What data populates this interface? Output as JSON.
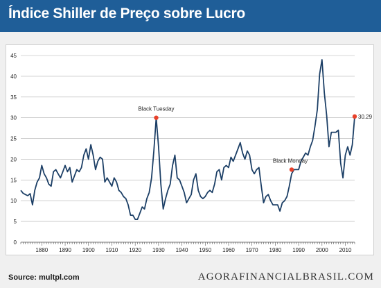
{
  "header": {
    "title": "Índice Shiller de Preço sobre Lucro"
  },
  "colors": {
    "header_bg": "#1f5e98",
    "line": "#1c3f66",
    "marker": "#e8412a",
    "grid": "#b0b0b0",
    "plot_bg": "#ffffff",
    "page_bg": "#f0f0f0"
  },
  "footer": {
    "source": "Source: multpl.com",
    "brand": "AGORAFINANCIALBRASIL.COM"
  },
  "chart_data": {
    "type": "line",
    "title": "Índice Shiller de Preço sobre Lucro",
    "xlabel": "",
    "ylabel": "",
    "xlim": [
      1871,
      2014
    ],
    "ylim": [
      0,
      45
    ],
    "x_ticks": [
      1880,
      1890,
      1900,
      1910,
      1920,
      1930,
      1940,
      1950,
      1960,
      1970,
      1980,
      1990,
      2000,
      2010
    ],
    "x_tick_labels": [
      "1880",
      "1890",
      "1900",
      "1910",
      "1920",
      "1930",
      "1940",
      "1950",
      "1960",
      "1970",
      "1980",
      "1990",
      "2000",
      "2010"
    ],
    "y_ticks": [
      0,
      5,
      10,
      15,
      20,
      25,
      30,
      35,
      40,
      45
    ],
    "y_tick_labels": [
      "0",
      "5",
      "10",
      "15",
      "20",
      "25",
      "30",
      "35",
      "40",
      "45"
    ],
    "grid": "horizontal",
    "series": [
      {
        "x": [
          1871,
          1872,
          1873,
          1874,
          1875,
          1876,
          1877,
          1878,
          1879,
          1880,
          1881,
          1882,
          1883,
          1884,
          1885,
          1886,
          1887,
          1888,
          1889,
          1890,
          1891,
          1892,
          1893,
          1894,
          1895,
          1896,
          1897,
          1898,
          1899,
          1900,
          1901,
          1902,
          1903,
          1904,
          1905,
          1906,
          1907,
          1908,
          1909,
          1910,
          1911,
          1912,
          1913,
          1914,
          1915,
          1916,
          1917,
          1918,
          1919,
          1920,
          1921,
          1922,
          1923,
          1924,
          1925,
          1926,
          1927,
          1928,
          1929,
          1930,
          1931,
          1932,
          1933,
          1934,
          1935,
          1936,
          1937,
          1938,
          1939,
          1940,
          1941,
          1942,
          1943,
          1944,
          1945,
          1946,
          1947,
          1948,
          1949,
          1950,
          1951,
          1952,
          1953,
          1954,
          1955,
          1956,
          1957,
          1958,
          1959,
          1960,
          1961,
          1962,
          1963,
          1964,
          1965,
          1966,
          1967,
          1968,
          1969,
          1970,
          1971,
          1972,
          1973,
          1974,
          1975,
          1976,
          1977,
          1978,
          1979,
          1980,
          1981,
          1982,
          1983,
          1984,
          1985,
          1986,
          1987,
          1988,
          1989,
          1990,
          1991,
          1992,
          1993,
          1994,
          1995,
          1996,
          1997,
          1998,
          1999,
          2000,
          2001,
          2002,
          2003,
          2004,
          2005,
          2006,
          2007,
          2008,
          2009,
          2010,
          2011,
          2012,
          2013,
          2014
        ],
        "values": [
          12.5,
          11.8,
          11.5,
          11.2,
          11.7,
          9.0,
          12.5,
          14.5,
          15.5,
          18.5,
          16.5,
          15.5,
          14.0,
          13.5,
          17.0,
          17.5,
          16.5,
          15.5,
          17.0,
          18.5,
          17.0,
          18.0,
          14.5,
          16.0,
          17.5,
          17.0,
          18.0,
          21.0,
          22.5,
          20.0,
          23.5,
          21.0,
          17.5,
          19.5,
          20.5,
          20.0,
          14.5,
          15.5,
          14.5,
          13.5,
          15.5,
          14.5,
          12.5,
          12.0,
          11.0,
          10.5,
          9.0,
          6.5,
          6.5,
          5.5,
          5.5,
          7.0,
          8.5,
          8.0,
          10.5,
          12.0,
          15.5,
          22.0,
          30.0,
          23.0,
          14.0,
          8.0,
          10.5,
          12.5,
          14.0,
          18.5,
          21.0,
          15.5,
          15.0,
          13.5,
          12.0,
          9.5,
          10.5,
          11.5,
          15.0,
          16.5,
          12.5,
          11.0,
          10.5,
          11.0,
          12.0,
          12.5,
          12.0,
          14.0,
          17.0,
          17.5,
          15.0,
          18.0,
          18.5,
          18.0,
          20.5,
          19.5,
          21.0,
          22.5,
          24.0,
          21.5,
          20.0,
          22.0,
          21.0,
          17.5,
          16.5,
          17.5,
          18.0,
          13.5,
          9.5,
          11.0,
          11.5,
          10.0,
          9.0,
          9.0,
          9.0,
          7.5,
          9.5,
          10.0,
          11.0,
          13.5,
          16.5,
          17.5,
          17.5,
          17.5,
          19.5,
          20.5,
          21.5,
          21.0,
          23.0,
          24.5,
          28.0,
          32.0,
          40.5,
          44.0,
          36.0,
          30.5,
          23.0,
          26.5,
          26.5,
          26.5,
          27.0,
          19.0,
          15.5,
          21.0,
          23.0,
          21.0,
          23.5,
          30.3
        ]
      }
    ],
    "annotations": [
      {
        "label": "Black Tuesday",
        "x": 1929,
        "y": 30.0
      },
      {
        "label": "Black Monday",
        "x": 1987,
        "y": 17.5
      },
      {
        "label": "30.29",
        "x": 2014,
        "y": 30.3
      }
    ]
  }
}
